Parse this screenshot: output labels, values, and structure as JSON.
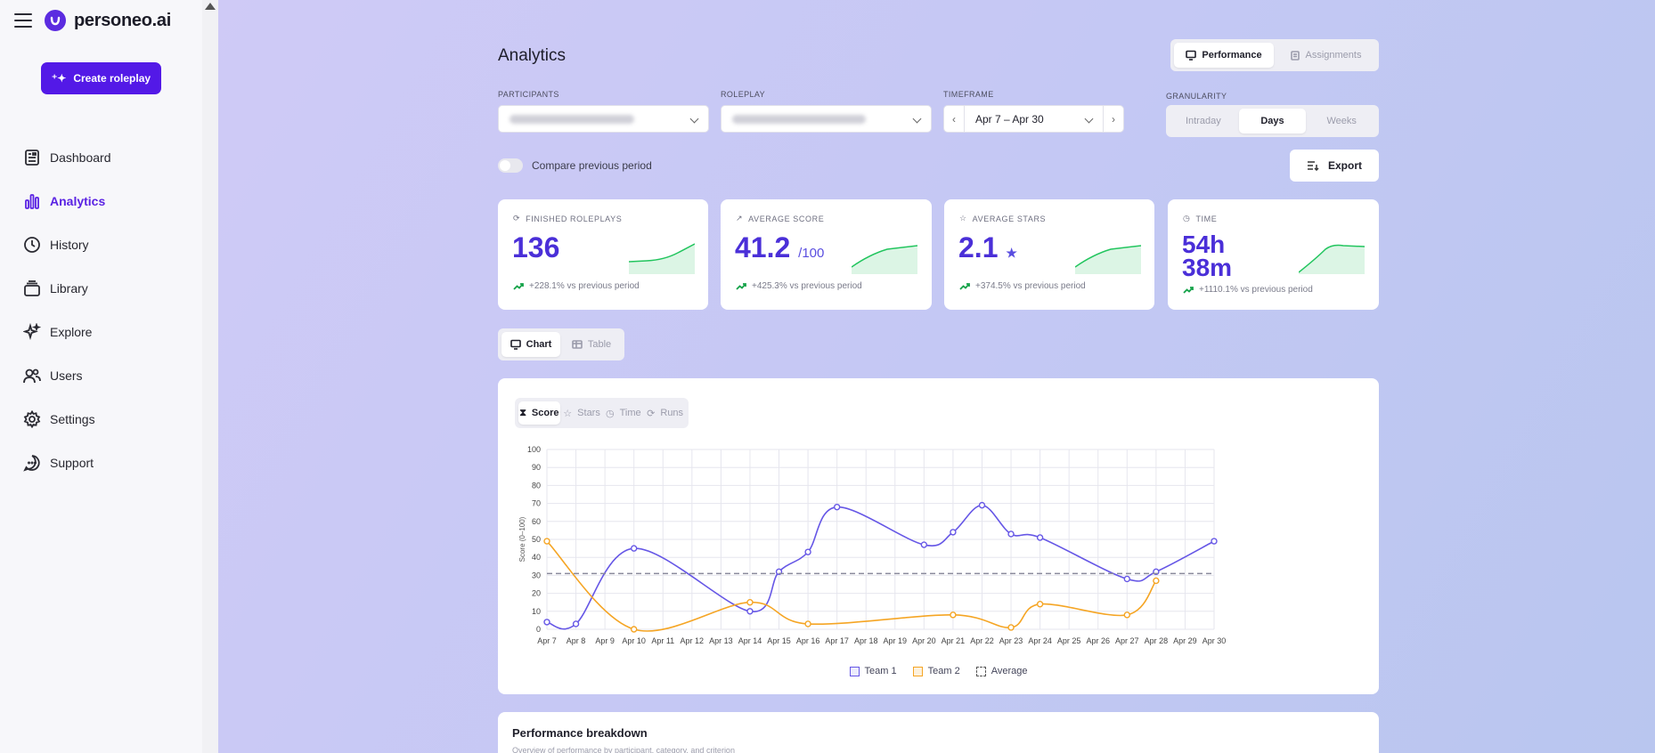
{
  "brand": {
    "name": "personeo.ai"
  },
  "sidebar": {
    "create_label": "Create roleplay",
    "items": [
      {
        "label": "Dashboard",
        "icon": "dashboard-icon"
      },
      {
        "label": "Analytics",
        "icon": "analytics-icon",
        "active": true
      },
      {
        "label": "History",
        "icon": "history-icon"
      },
      {
        "label": "Library",
        "icon": "library-icon"
      },
      {
        "label": "Explore",
        "icon": "explore-icon"
      },
      {
        "label": "Users",
        "icon": "users-icon"
      },
      {
        "label": "Settings",
        "icon": "settings-icon"
      },
      {
        "label": "Support",
        "icon": "support-icon"
      }
    ]
  },
  "header": {
    "title": "Analytics",
    "views": [
      "Performance",
      "Assignments"
    ],
    "active_view": "Performance"
  },
  "filters": {
    "participants_label": "PARTICIPANTS",
    "roleplay_label": "ROLEPLAY",
    "timeframe_label": "TIMEFRAME",
    "timeframe_value": "Apr 7 – Apr 30",
    "granularity_label": "GRANULARITY",
    "granularity_options": [
      "Intraday",
      "Days",
      "Weeks"
    ],
    "granularity_selected": "Days",
    "compare_label": "Compare previous period",
    "compare_on": false,
    "export_label": "Export"
  },
  "stats": [
    {
      "label": "FINISHED ROLEPLAYS",
      "value": "136",
      "suffix": "",
      "change": "+228.1% vs previous period"
    },
    {
      "label": "AVERAGE SCORE",
      "value": "41.2",
      "suffix": "/100",
      "change": "+425.3% vs previous period"
    },
    {
      "label": "AVERAGE STARS",
      "value": "2.1",
      "suffix": "★",
      "change": "+374.5% vs previous period"
    },
    {
      "label": "TIME",
      "value_line1": "54h",
      "value_line2": "38m",
      "change": "+1110.1% vs previous period"
    }
  ],
  "view_toggle": {
    "options": [
      "Chart",
      "Table"
    ],
    "selected": "Chart"
  },
  "metric_tabs": {
    "options": [
      "Score",
      "Stars",
      "Time",
      "Runs"
    ],
    "selected": "Score"
  },
  "chart_data": {
    "type": "line",
    "ylabel": "Score (0–100)",
    "xlabel": "",
    "ylim": [
      0,
      100
    ],
    "yticks": [
      0,
      10,
      20,
      30,
      40,
      50,
      60,
      70,
      80,
      90,
      100
    ],
    "categories": [
      "Apr 7",
      "Apr 8",
      "Apr 9",
      "Apr 10",
      "Apr 11",
      "Apr 12",
      "Apr 13",
      "Apr 14",
      "Apr 15",
      "Apr 16",
      "Apr 17",
      "Apr 18",
      "Apr 19",
      "Apr 20",
      "Apr 21",
      "Apr 22",
      "Apr 23",
      "Apr 24",
      "Apr 25",
      "Apr 26",
      "Apr 27",
      "Apr 28",
      "Apr 29",
      "Apr 30"
    ],
    "series": [
      {
        "name": "Team 1",
        "color": "#6657e6",
        "values": [
          4,
          3,
          null,
          45,
          null,
          null,
          null,
          10,
          32,
          43,
          68,
          null,
          null,
          47,
          54,
          69,
          53,
          51,
          null,
          null,
          28,
          32,
          null,
          49
        ]
      },
      {
        "name": "Team 2",
        "color": "#f5a524",
        "values": [
          49,
          null,
          null,
          0,
          null,
          null,
          null,
          15,
          null,
          3,
          null,
          null,
          null,
          null,
          8,
          null,
          1,
          14,
          null,
          null,
          8,
          27,
          null,
          null
        ]
      },
      {
        "name": "Average",
        "color": "#8a8a9c",
        "values": [
          31,
          31,
          31,
          31,
          31,
          31,
          31,
          31,
          31,
          31,
          31,
          31,
          31,
          31,
          31,
          31,
          31,
          31,
          31,
          31,
          31,
          31,
          31,
          31
        ]
      }
    ],
    "grid": true,
    "legend": "bottom"
  },
  "breakdown": {
    "title": "Performance breakdown",
    "subtitle": "Overview of performance by participant, category, and criterion"
  }
}
